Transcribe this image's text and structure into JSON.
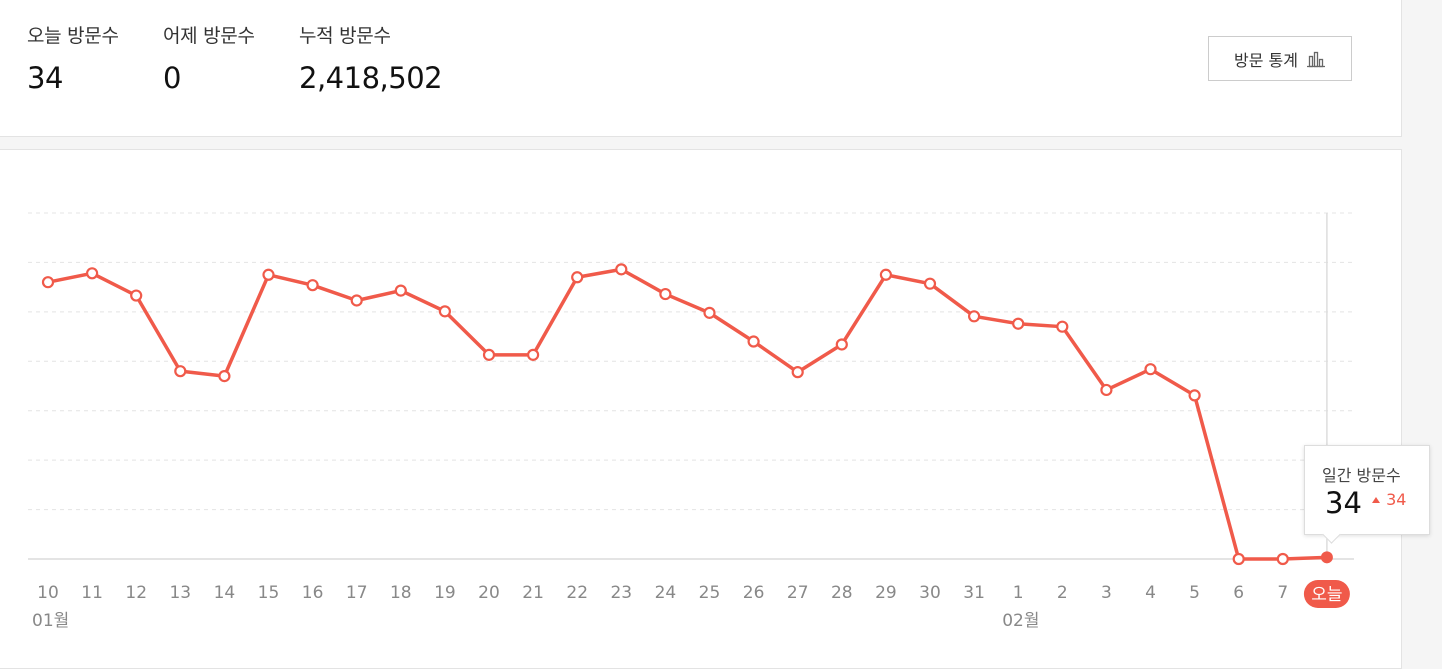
{
  "summary": {
    "today_label": "오늘 방문수",
    "today_value": "34",
    "yesterday_label": "어제 방문수",
    "yesterday_value": "0",
    "total_label": "누적 방문수",
    "total_value": "2,418,502",
    "stats_button_label": "방문 통계",
    "stats_button_icon": "bar-chart-icon"
  },
  "colors": {
    "line": "#f05a4a",
    "grid": "#e4e4e4",
    "tick_text": "#888888",
    "today_badge": "#f05a4a"
  },
  "tooltip": {
    "title": "일간 방문수",
    "value": "34",
    "change": "34",
    "change_icon": "triangle-up-icon"
  },
  "chart_data": {
    "type": "line",
    "title": "",
    "xlabel": "",
    "ylabel": "",
    "x": [
      "10",
      "11",
      "12",
      "13",
      "14",
      "15",
      "16",
      "17",
      "18",
      "19",
      "20",
      "21",
      "22",
      "23",
      "24",
      "25",
      "26",
      "27",
      "28",
      "29",
      "30",
      "31",
      "1",
      "2",
      "3",
      "4",
      "5",
      "6",
      "7",
      "오늘"
    ],
    "month_labels": [
      {
        "label": "01월",
        "at_index": 0
      },
      {
        "label": "02월",
        "at_index": 22
      }
    ],
    "highlight_index": 29,
    "series": [
      {
        "values": [
          5600,
          5780,
          5330,
          3800,
          3700,
          5750,
          5540,
          5230,
          5430,
          5010,
          4130,
          4130,
          5700,
          5860,
          5360,
          4980,
          4400,
          3780,
          4340,
          5750,
          5570,
          4910,
          4760,
          4700,
          3420,
          3840,
          3310,
          0,
          0,
          34
        ]
      }
    ],
    "ylim": [
      0,
      7000
    ],
    "grid": true,
    "ticks_y_visible": false
  }
}
